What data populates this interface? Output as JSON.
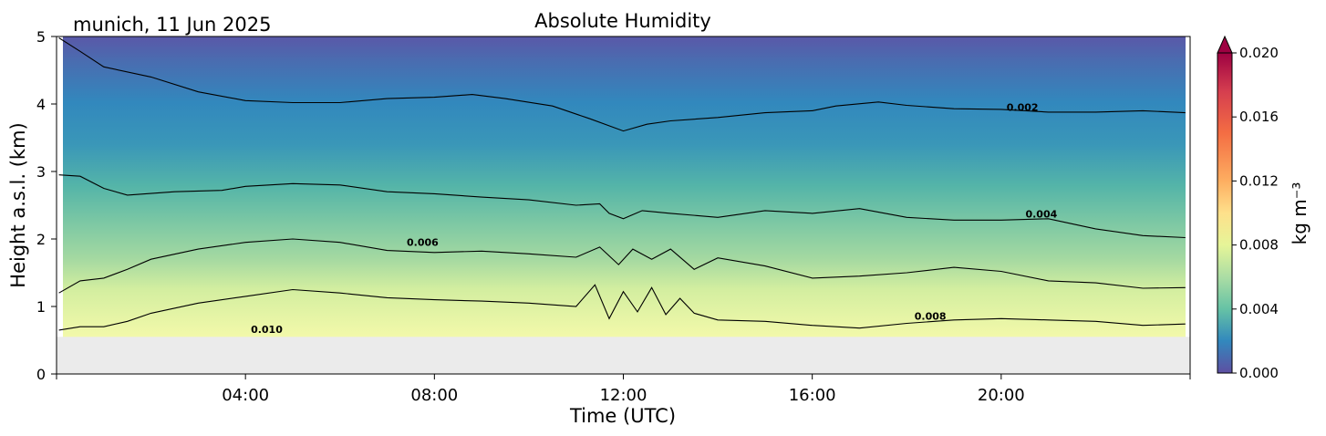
{
  "header": {
    "location_date": "munich, 11 Jun 2025"
  },
  "chart_data": {
    "type": "heatmap",
    "title": "Absolute Humidity",
    "xlabel": "Time (UTC)",
    "ylabel": "Height a.s.l. (km)",
    "x_range_hours": [
      0,
      24
    ],
    "x_tick_hours": [
      4,
      8,
      12,
      16,
      20
    ],
    "x_tick_labels": [
      "04:00",
      "08:00",
      "12:00",
      "16:00",
      "20:00"
    ],
    "ylim": [
      0,
      5
    ],
    "y_ticks": [
      0,
      1,
      2,
      3,
      4,
      5
    ],
    "y_tick_labels": [
      "0",
      "1",
      "2",
      "3",
      "4",
      "5"
    ],
    "ground_level_km": 0.55,
    "colorbar": {
      "label": "kg m⁻³",
      "range": [
        0.0,
        0.02
      ],
      "ticks": [
        0.0,
        0.004,
        0.008,
        0.012,
        0.016,
        0.02
      ],
      "tick_labels": [
        "0.000",
        "0.004",
        "0.008",
        "0.012",
        "0.016",
        "0.020"
      ],
      "colormap": "Spectral_r",
      "extend": "max"
    },
    "grid": false,
    "contours": [
      {
        "level": 0.002,
        "label": "0.002",
        "points": [
          [
            0.05,
            4.98
          ],
          [
            0.5,
            4.78
          ],
          [
            1.0,
            4.55
          ],
          [
            2.0,
            4.4
          ],
          [
            3.0,
            4.18
          ],
          [
            4.0,
            4.05
          ],
          [
            5.0,
            4.02
          ],
          [
            6.0,
            4.02
          ],
          [
            7.0,
            4.08
          ],
          [
            8.0,
            4.1
          ],
          [
            8.8,
            4.14
          ],
          [
            9.5,
            4.08
          ],
          [
            10.5,
            3.97
          ],
          [
            11.3,
            3.78
          ],
          [
            12.0,
            3.6
          ],
          [
            12.5,
            3.7
          ],
          [
            13.0,
            3.75
          ],
          [
            14.0,
            3.8
          ],
          [
            15.0,
            3.87
          ],
          [
            16.0,
            3.9
          ],
          [
            16.5,
            3.97
          ],
          [
            17.4,
            4.03
          ],
          [
            18.0,
            3.98
          ],
          [
            19.0,
            3.93
          ],
          [
            20.0,
            3.92
          ],
          [
            21.0,
            3.88
          ],
          [
            22.0,
            3.88
          ],
          [
            23.0,
            3.9
          ],
          [
            23.9,
            3.87
          ]
        ]
      },
      {
        "level": 0.004,
        "label": "0.004",
        "points": [
          [
            0.05,
            2.95
          ],
          [
            0.5,
            2.93
          ],
          [
            1.0,
            2.75
          ],
          [
            1.5,
            2.65
          ],
          [
            2.5,
            2.7
          ],
          [
            3.5,
            2.72
          ],
          [
            4.0,
            2.78
          ],
          [
            5.0,
            2.82
          ],
          [
            6.0,
            2.8
          ],
          [
            7.0,
            2.7
          ],
          [
            8.0,
            2.67
          ],
          [
            9.0,
            2.62
          ],
          [
            10.0,
            2.58
          ],
          [
            11.0,
            2.5
          ],
          [
            11.5,
            2.52
          ],
          [
            11.7,
            2.38
          ],
          [
            12.0,
            2.3
          ],
          [
            12.4,
            2.42
          ],
          [
            13.0,
            2.38
          ],
          [
            14.0,
            2.32
          ],
          [
            15.0,
            2.42
          ],
          [
            16.0,
            2.38
          ],
          [
            17.0,
            2.45
          ],
          [
            18.0,
            2.32
          ],
          [
            19.0,
            2.28
          ],
          [
            20.0,
            2.28
          ],
          [
            21.0,
            2.3
          ],
          [
            22.0,
            2.15
          ],
          [
            23.0,
            2.05
          ],
          [
            23.9,
            2.02
          ]
        ]
      },
      {
        "level": 0.006,
        "label": "0.006",
        "points": [
          [
            0.05,
            1.2
          ],
          [
            0.5,
            1.38
          ],
          [
            1.0,
            1.42
          ],
          [
            1.5,
            1.55
          ],
          [
            2.0,
            1.7
          ],
          [
            3.0,
            1.85
          ],
          [
            4.0,
            1.95
          ],
          [
            5.0,
            2.0
          ],
          [
            6.0,
            1.95
          ],
          [
            7.0,
            1.83
          ],
          [
            8.0,
            1.8
          ],
          [
            9.0,
            1.82
          ],
          [
            10.0,
            1.78
          ],
          [
            11.0,
            1.73
          ],
          [
            11.5,
            1.88
          ],
          [
            11.9,
            1.62
          ],
          [
            12.2,
            1.85
          ],
          [
            12.6,
            1.7
          ],
          [
            13.0,
            1.85
          ],
          [
            13.5,
            1.55
          ],
          [
            14.0,
            1.72
          ],
          [
            15.0,
            1.6
          ],
          [
            16.0,
            1.42
          ],
          [
            17.0,
            1.45
          ],
          [
            18.0,
            1.5
          ],
          [
            19.0,
            1.58
          ],
          [
            20.0,
            1.52
          ],
          [
            21.0,
            1.38
          ],
          [
            22.0,
            1.35
          ],
          [
            23.0,
            1.27
          ],
          [
            23.9,
            1.28
          ]
        ]
      },
      {
        "level": 0.008,
        "label": "0.008",
        "points": [
          [
            0.05,
            0.65
          ],
          [
            0.5,
            0.7
          ],
          [
            1.0,
            0.7
          ],
          [
            1.5,
            0.78
          ],
          [
            2.0,
            0.9
          ],
          [
            3.0,
            1.05
          ],
          [
            4.0,
            1.15
          ],
          [
            5.0,
            1.25
          ],
          [
            6.0,
            1.2
          ],
          [
            7.0,
            1.13
          ],
          [
            8.0,
            1.1
          ],
          [
            9.0,
            1.08
          ],
          [
            10.0,
            1.05
          ],
          [
            11.0,
            1.0
          ],
          [
            11.4,
            1.32
          ],
          [
            11.7,
            0.82
          ],
          [
            12.0,
            1.22
          ],
          [
            12.3,
            0.92
          ],
          [
            12.6,
            1.28
          ],
          [
            12.9,
            0.88
          ],
          [
            13.2,
            1.12
          ],
          [
            13.5,
            0.9
          ],
          [
            14.0,
            0.8
          ],
          [
            15.0,
            0.78
          ],
          [
            16.0,
            0.72
          ],
          [
            17.0,
            0.68
          ],
          [
            18.0,
            0.75
          ],
          [
            19.0,
            0.8
          ],
          [
            20.0,
            0.82
          ],
          [
            21.0,
            0.8
          ],
          [
            22.0,
            0.78
          ],
          [
            23.0,
            0.72
          ],
          [
            23.9,
            0.74
          ]
        ]
      }
    ],
    "contour_labels": [
      {
        "text": "0.002",
        "x": 20.45,
        "y": 3.95
      },
      {
        "text": "0.004",
        "x": 20.85,
        "y": 2.37
      },
      {
        "text": "0.006",
        "x": 7.75,
        "y": 1.95
      },
      {
        "text": "0.008",
        "x": 18.5,
        "y": 0.86
      },
      {
        "text": "0.010",
        "x": 4.45,
        "y": 0.66
      }
    ]
  }
}
